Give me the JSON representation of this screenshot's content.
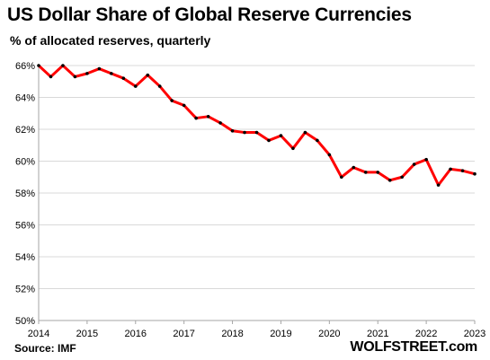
{
  "title": "US Dollar Share of Global  Reserve Currencies",
  "subtitle": "% of allocated reserves, quarterly",
  "source": "Source: IMF",
  "brand": "WOLFSTREET.com",
  "colors": {
    "line": "#ff0000",
    "marker": "#000000",
    "grid": "#d9d9d9",
    "axis": "#a6a6a6"
  },
  "chart_data": {
    "type": "line",
    "title": "US Dollar Share of Global  Reserve Currencies",
    "subtitle": "% of allocated reserves, quarterly",
    "xlabel": "",
    "ylabel": "",
    "ylim": [
      50,
      66
    ],
    "y_ticks": [
      50,
      52,
      54,
      56,
      58,
      60,
      62,
      64,
      66
    ],
    "y_tick_labels": [
      "50%",
      "52%",
      "54%",
      "56%",
      "58%",
      "60%",
      "62%",
      "64%",
      "66%"
    ],
    "x_tick_labels": [
      "2014",
      "2015",
      "2016",
      "2017",
      "2018",
      "2019",
      "2020",
      "2021",
      "2022",
      "2023"
    ],
    "grid": true,
    "legend": "none",
    "series": [
      {
        "x": [
          "2014Q1",
          "2014Q2",
          "2014Q3",
          "2014Q4",
          "2015Q1",
          "2015Q2",
          "2015Q3",
          "2015Q4",
          "2016Q1",
          "2016Q2",
          "2016Q3",
          "2016Q4",
          "2017Q1",
          "2017Q2",
          "2017Q3",
          "2017Q4",
          "2018Q1",
          "2018Q2",
          "2018Q3",
          "2018Q4",
          "2019Q1",
          "2019Q2",
          "2019Q3",
          "2019Q4",
          "2020Q1",
          "2020Q2",
          "2020Q3",
          "2020Q4",
          "2021Q1",
          "2021Q2",
          "2021Q3",
          "2021Q4",
          "2022Q1",
          "2022Q2",
          "2022Q3",
          "2022Q4",
          "2023Q1"
        ],
        "values": [
          66.0,
          65.3,
          66.0,
          65.3,
          65.5,
          65.8,
          65.5,
          65.2,
          64.7,
          65.4,
          64.7,
          63.8,
          63.5,
          62.7,
          62.8,
          62.4,
          61.9,
          61.8,
          61.8,
          61.3,
          61.6,
          60.8,
          61.8,
          61.3,
          60.4,
          59.0,
          59.6,
          59.3,
          59.3,
          58.8,
          59.0,
          59.8,
          60.1,
          58.5,
          59.5,
          59.4,
          59.2
        ]
      }
    ]
  }
}
